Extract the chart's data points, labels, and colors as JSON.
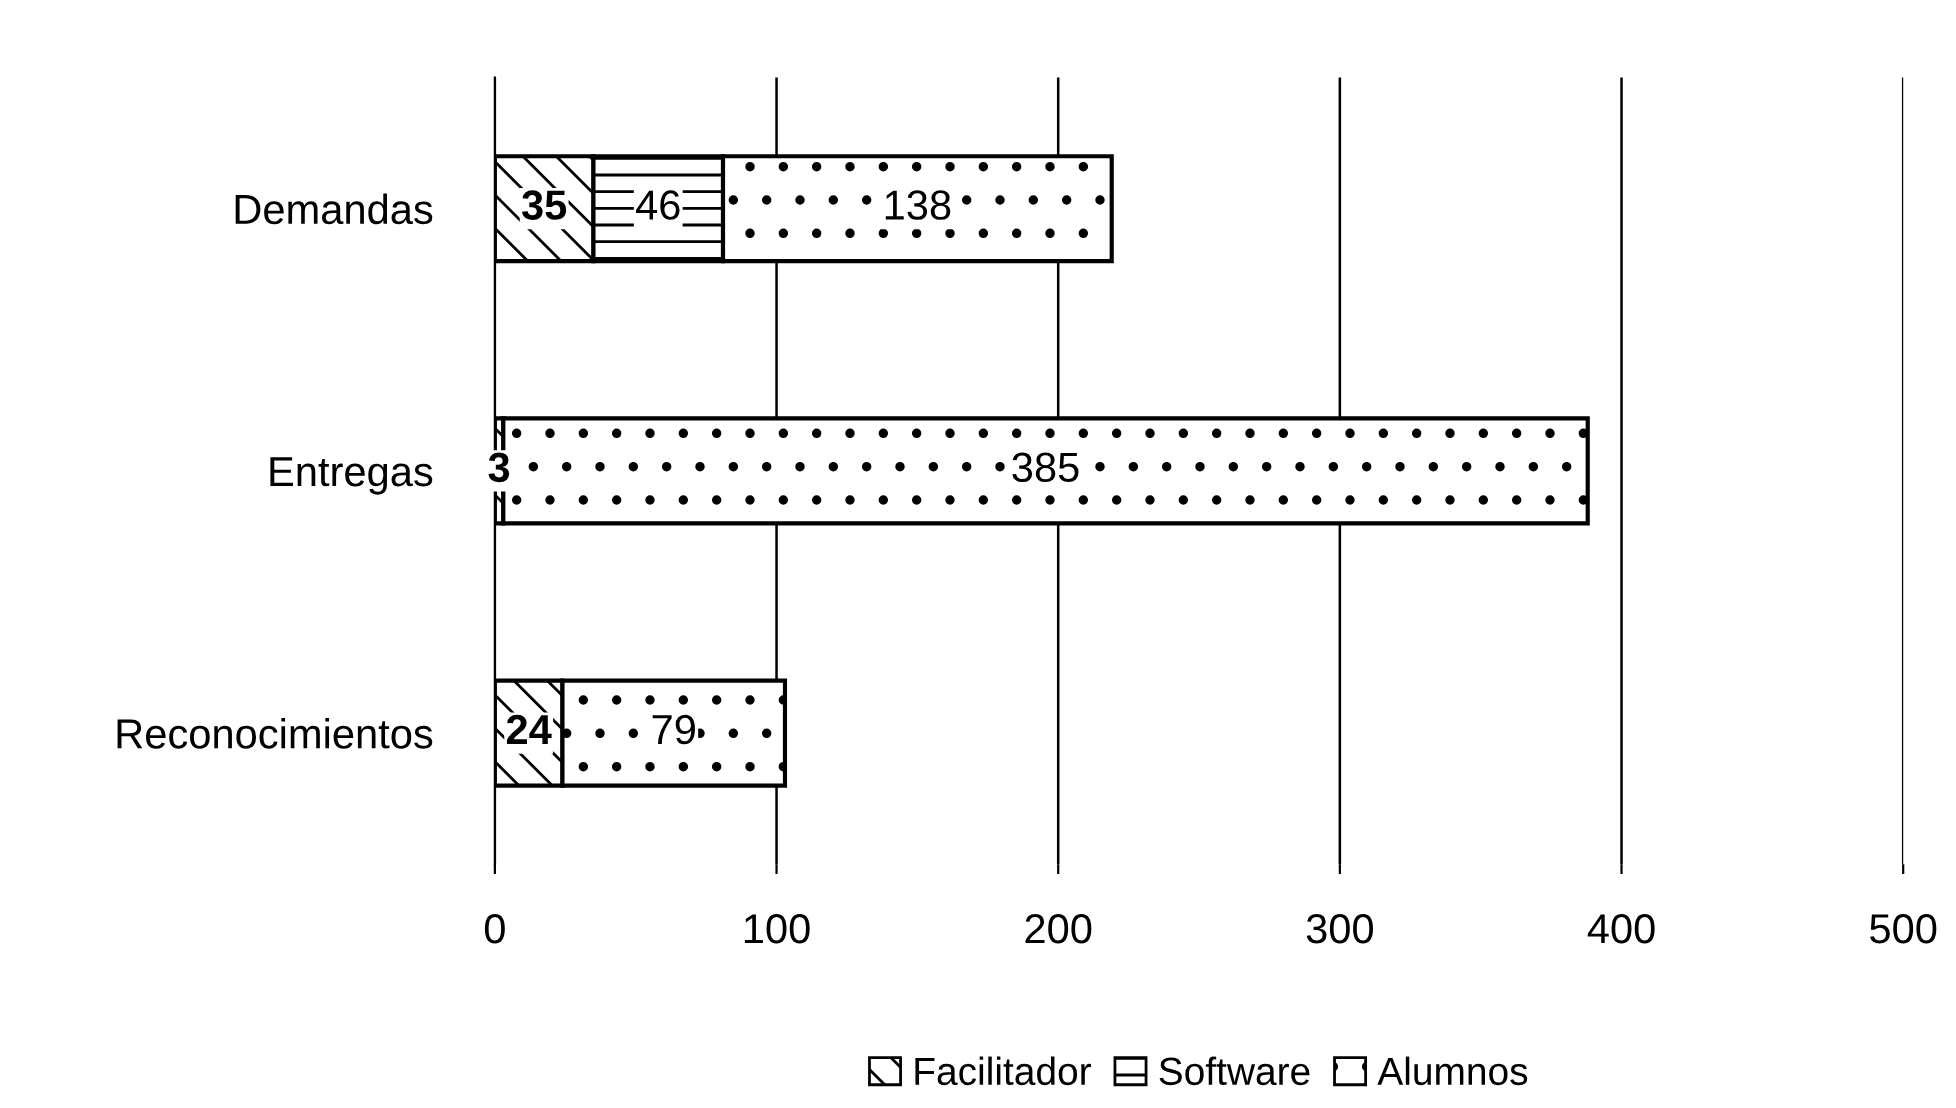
{
  "chart_data": {
    "type": "bar",
    "orientation": "horizontal",
    "stacked": true,
    "categories": [
      "Demandas",
      "Entregas",
      "Reconocimientos"
    ],
    "series": [
      {
        "name": "Facilitador",
        "color": "#000000",
        "values": [
          35,
          3,
          24
        ]
      },
      {
        "name": "Software",
        "color": "#000000",
        "values": [
          46,
          null,
          null
        ]
      },
      {
        "name": "Alumnos",
        "color": "#000000",
        "values": [
          138,
          385,
          79
        ]
      }
    ],
    "xlim": [
      0,
      500
    ],
    "xticks": [
      0,
      100,
      200,
      300,
      400,
      500
    ],
    "grid": "x",
    "legend": "bottom",
    "data_labels": true
  }
}
